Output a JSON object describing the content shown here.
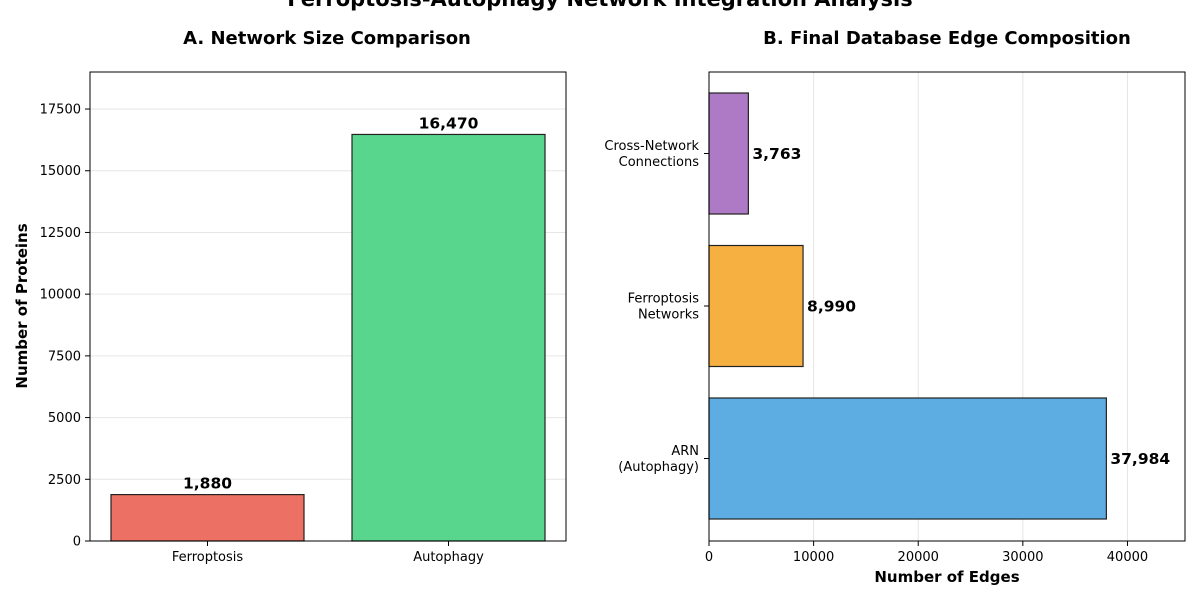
{
  "suptitle": "Ferroptosis-Autophagy Network Integration Analysis",
  "chart_data": [
    {
      "type": "bar",
      "orientation": "vertical",
      "title": "A. Network Size Comparison",
      "xlabel": "",
      "ylabel": "Number of Proteins",
      "categories": [
        "Ferroptosis",
        "Autophagy"
      ],
      "values": [
        1880,
        16470
      ],
      "value_labels": [
        "1,880",
        "16,470"
      ],
      "colors": [
        "#ec7063",
        "#58d68d"
      ],
      "ylim": [
        0,
        19000
      ],
      "yticks": [
        0,
        2500,
        5000,
        7500,
        10000,
        12500,
        15000,
        17500
      ],
      "ytick_labels": [
        "0",
        "2500",
        "5000",
        "7500",
        "10000",
        "12500",
        "15000",
        "17500"
      ],
      "grid": "y"
    },
    {
      "type": "bar",
      "orientation": "horizontal",
      "title": "B. Final Database Edge Composition",
      "xlabel": "Number of Edges",
      "ylabel": "",
      "categories": [
        "ARN\n(Autophagy)",
        "Ferroptosis\nNetworks",
        "Cross-Network\nConnections"
      ],
      "values": [
        37984,
        8990,
        3763
      ],
      "value_labels": [
        "37,984",
        "8,990",
        "3,763"
      ],
      "colors": [
        "#5dade2",
        "#f5b041",
        "#af7ac5"
      ],
      "xlim": [
        0,
        45500
      ],
      "xticks": [
        0,
        10000,
        20000,
        30000,
        40000
      ],
      "xtick_labels": [
        "0",
        "10000",
        "20000",
        "30000",
        "40000"
      ],
      "grid": "x"
    }
  ]
}
